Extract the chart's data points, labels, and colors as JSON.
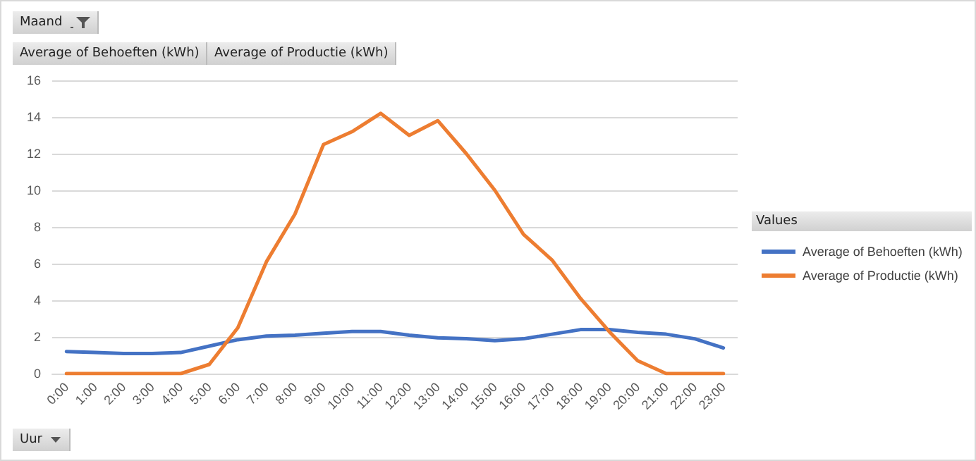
{
  "chart_data": {
    "type": "line",
    "xlabel": "Uur",
    "legend_title": "Values",
    "annotations": [
      "Maand",
      "Average of Behoeften  (kWh)",
      "Average of Productie  (kWh)"
    ],
    "categories": [
      "0:00",
      "1:00",
      "2:00",
      "3:00",
      "4:00",
      "5:00",
      "6:00",
      "7:00",
      "8:00",
      "9:00",
      "10:00",
      "11:00",
      "12:00",
      "13:00",
      "14:00",
      "15:00",
      "16:00",
      "17:00",
      "18:00",
      "19:00",
      "20:00",
      "21:00",
      "22:00",
      "23:00"
    ],
    "series": [
      {
        "name": "Average of Behoeften (kWh)",
        "color": "#4472c4",
        "values": [
          1.2,
          1.15,
          1.1,
          1.1,
          1.15,
          1.5,
          1.85,
          2.05,
          2.1,
          2.2,
          2.3,
          2.3,
          2.1,
          1.95,
          1.9,
          1.8,
          1.9,
          2.15,
          2.4,
          2.4,
          2.25,
          2.15,
          1.9,
          1.4
        ]
      },
      {
        "name": "Average of Productie (kWh)",
        "color": "#ed7d31",
        "values": [
          0,
          0,
          0,
          0,
          0,
          0.5,
          2.5,
          6.1,
          8.7,
          12.5,
          13.2,
          14.2,
          13.0,
          13.8,
          12.0,
          10.0,
          7.6,
          6.2,
          4.1,
          2.3,
          0.7,
          0,
          0,
          0
        ]
      }
    ],
    "ylim": [
      0,
      16
    ],
    "yticks": [
      0,
      2,
      4,
      6,
      8,
      10,
      12,
      14,
      16
    ],
    "grid": "y",
    "legend": "right",
    "marker": "none",
    "line_style": "solid"
  }
}
